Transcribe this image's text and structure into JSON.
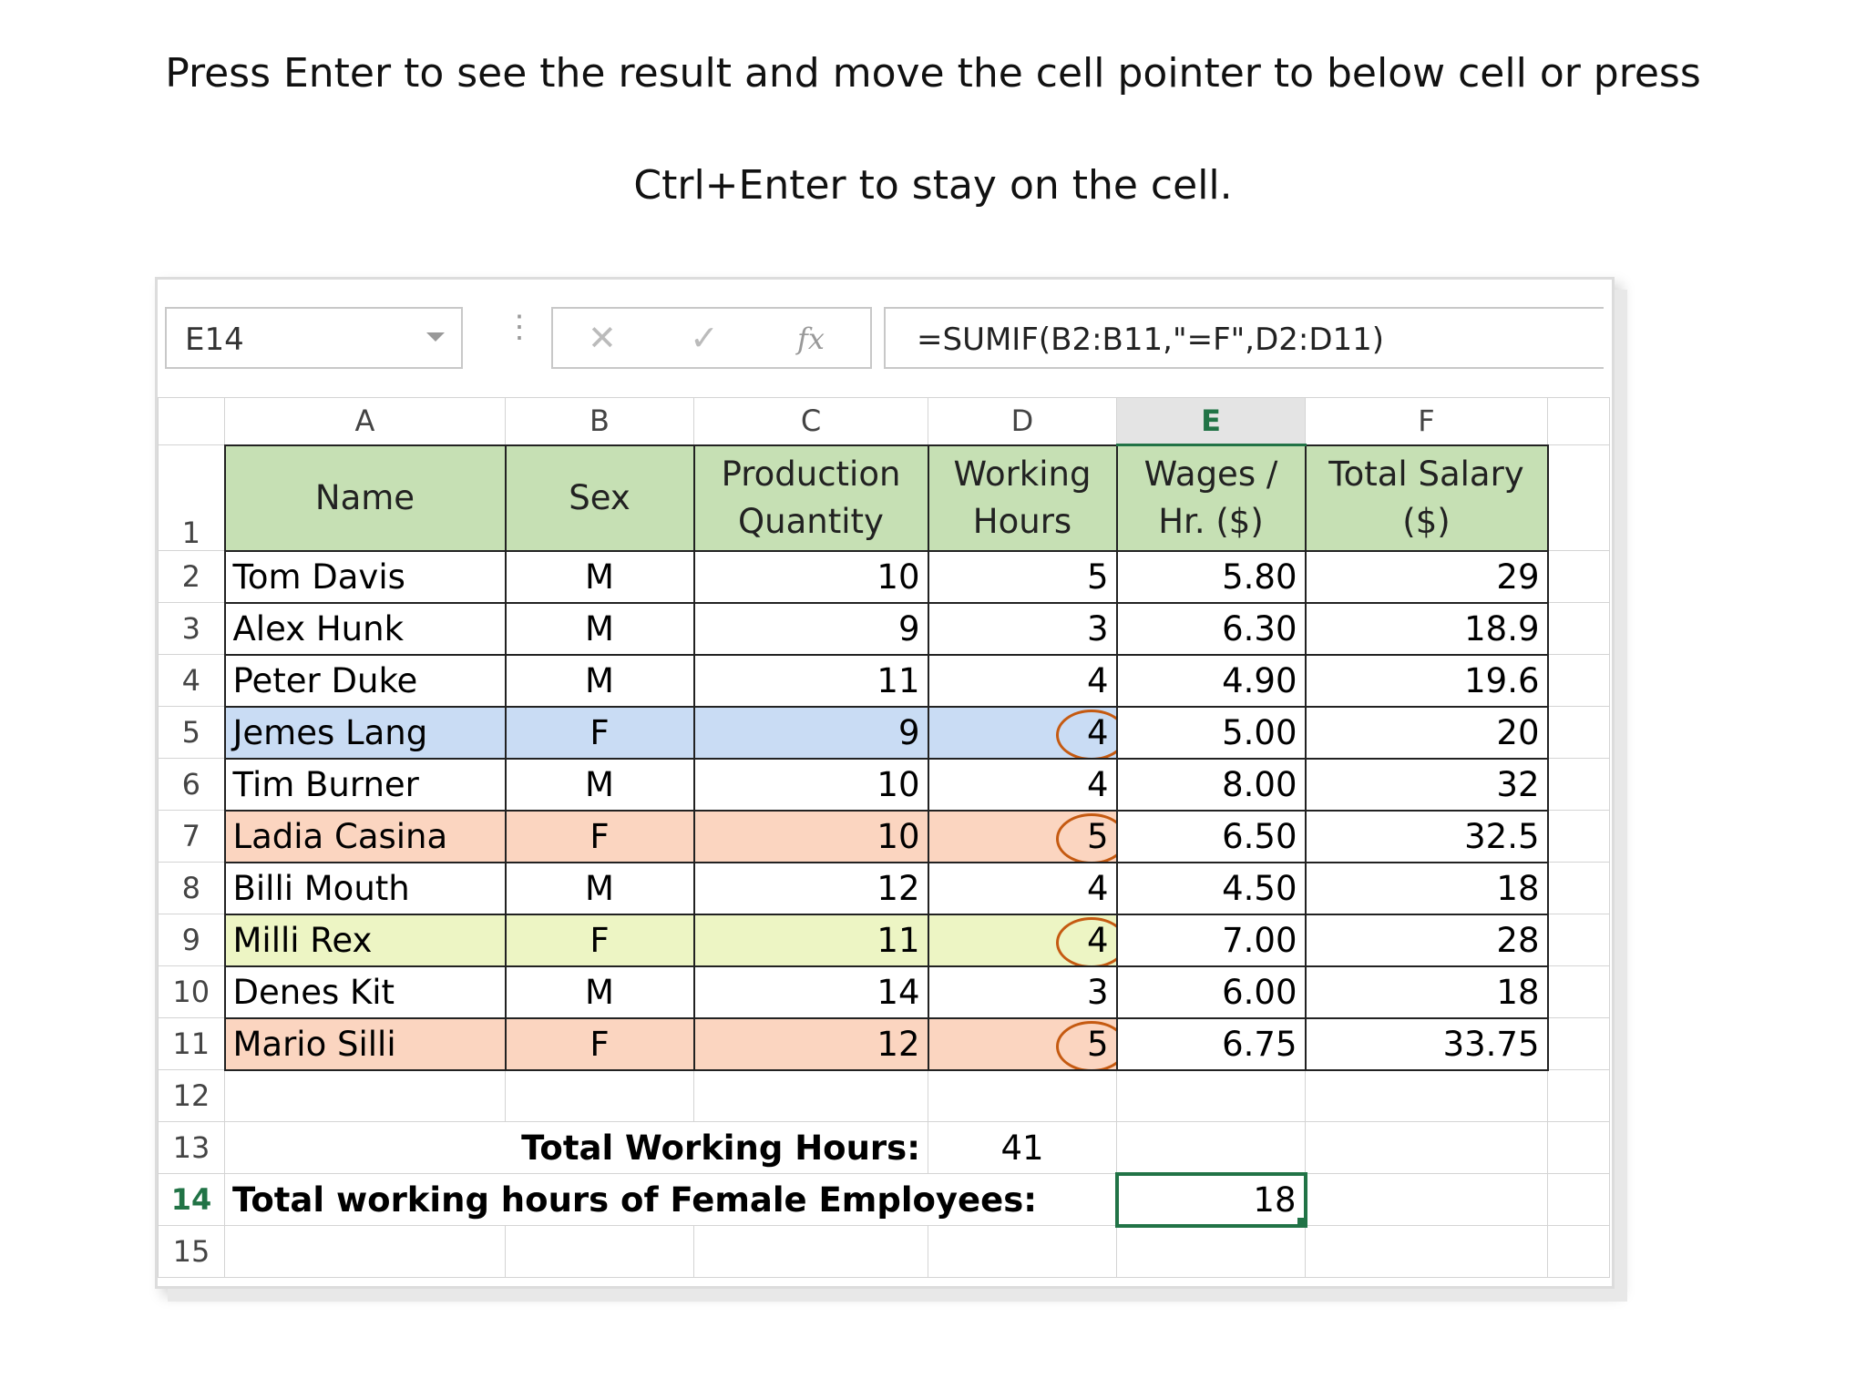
{
  "instruction": {
    "line1": "Press Enter to see the result and move the cell pointer to below cell or press",
    "line2": "Ctrl+Enter to stay on the cell."
  },
  "toolbar": {
    "name_box": "E14",
    "formula": "=SUMIF(B2:B11,\"=F\",D2:D11)",
    "cancel_icon": "close-icon",
    "enter_icon": "checkmark-icon",
    "fx_label": "fx"
  },
  "columns": [
    "A",
    "B",
    "C",
    "D",
    "E",
    "F"
  ],
  "selected_column": "E",
  "row_numbers": [
    "1",
    "2",
    "3",
    "4",
    "5",
    "6",
    "7",
    "8",
    "9",
    "10",
    "11",
    "12",
    "13",
    "14",
    "15"
  ],
  "headers": {
    "name": "Name",
    "sex": "Sex",
    "quantity": "Production Quantity",
    "hours": "Working Hours",
    "wages": "Wages / Hr. ($)",
    "salary": "Total Salary ($)"
  },
  "rows": [
    {
      "name": "Tom Davis",
      "sex": "M",
      "quantity": "10",
      "hours": "5",
      "wages": "5.80",
      "salary": "29"
    },
    {
      "name": "Alex Hunk",
      "sex": "M",
      "quantity": "9",
      "hours": "3",
      "wages": "6.30",
      "salary": "18.9"
    },
    {
      "name": "Peter Duke",
      "sex": "M",
      "quantity": "11",
      "hours": "4",
      "wages": "4.90",
      "salary": "19.6"
    },
    {
      "name": "Jemes Lang",
      "sex": "F",
      "quantity": "9",
      "hours": "4",
      "wages": "5.00",
      "salary": "20"
    },
    {
      "name": "Tim Burner",
      "sex": "M",
      "quantity": "10",
      "hours": "4",
      "wages": "8.00",
      "salary": "32"
    },
    {
      "name": "Ladia Casina",
      "sex": "F",
      "quantity": "10",
      "hours": "5",
      "wages": "6.50",
      "salary": "32.5"
    },
    {
      "name": "Billi Mouth",
      "sex": "M",
      "quantity": "12",
      "hours": "4",
      "wages": "4.50",
      "salary": "18"
    },
    {
      "name": "Milli Rex",
      "sex": "F",
      "quantity": "11",
      "hours": "4",
      "wages": "7.00",
      "salary": "28"
    },
    {
      "name": "Denes Kit",
      "sex": "M",
      "quantity": "14",
      "hours": "3",
      "wages": "6.00",
      "salary": "18"
    },
    {
      "name": "Mario Silli",
      "sex": "F",
      "quantity": "12",
      "hours": "5",
      "wages": "6.75",
      "salary": "33.75"
    }
  ],
  "totals": {
    "total_hours_label": "Total Working Hours:",
    "total_hours_value": "41",
    "female_hours_label": "Total working hours of Female Employees:",
    "female_hours_value": "18"
  },
  "colors": {
    "header_fill": "#c6e0b4",
    "blue_row": "#c9dcf4",
    "orange_row": "#fbd5c0",
    "yellow_row": "#edf5c4",
    "circle": "#c55a11",
    "active_cell": "#217346"
  }
}
